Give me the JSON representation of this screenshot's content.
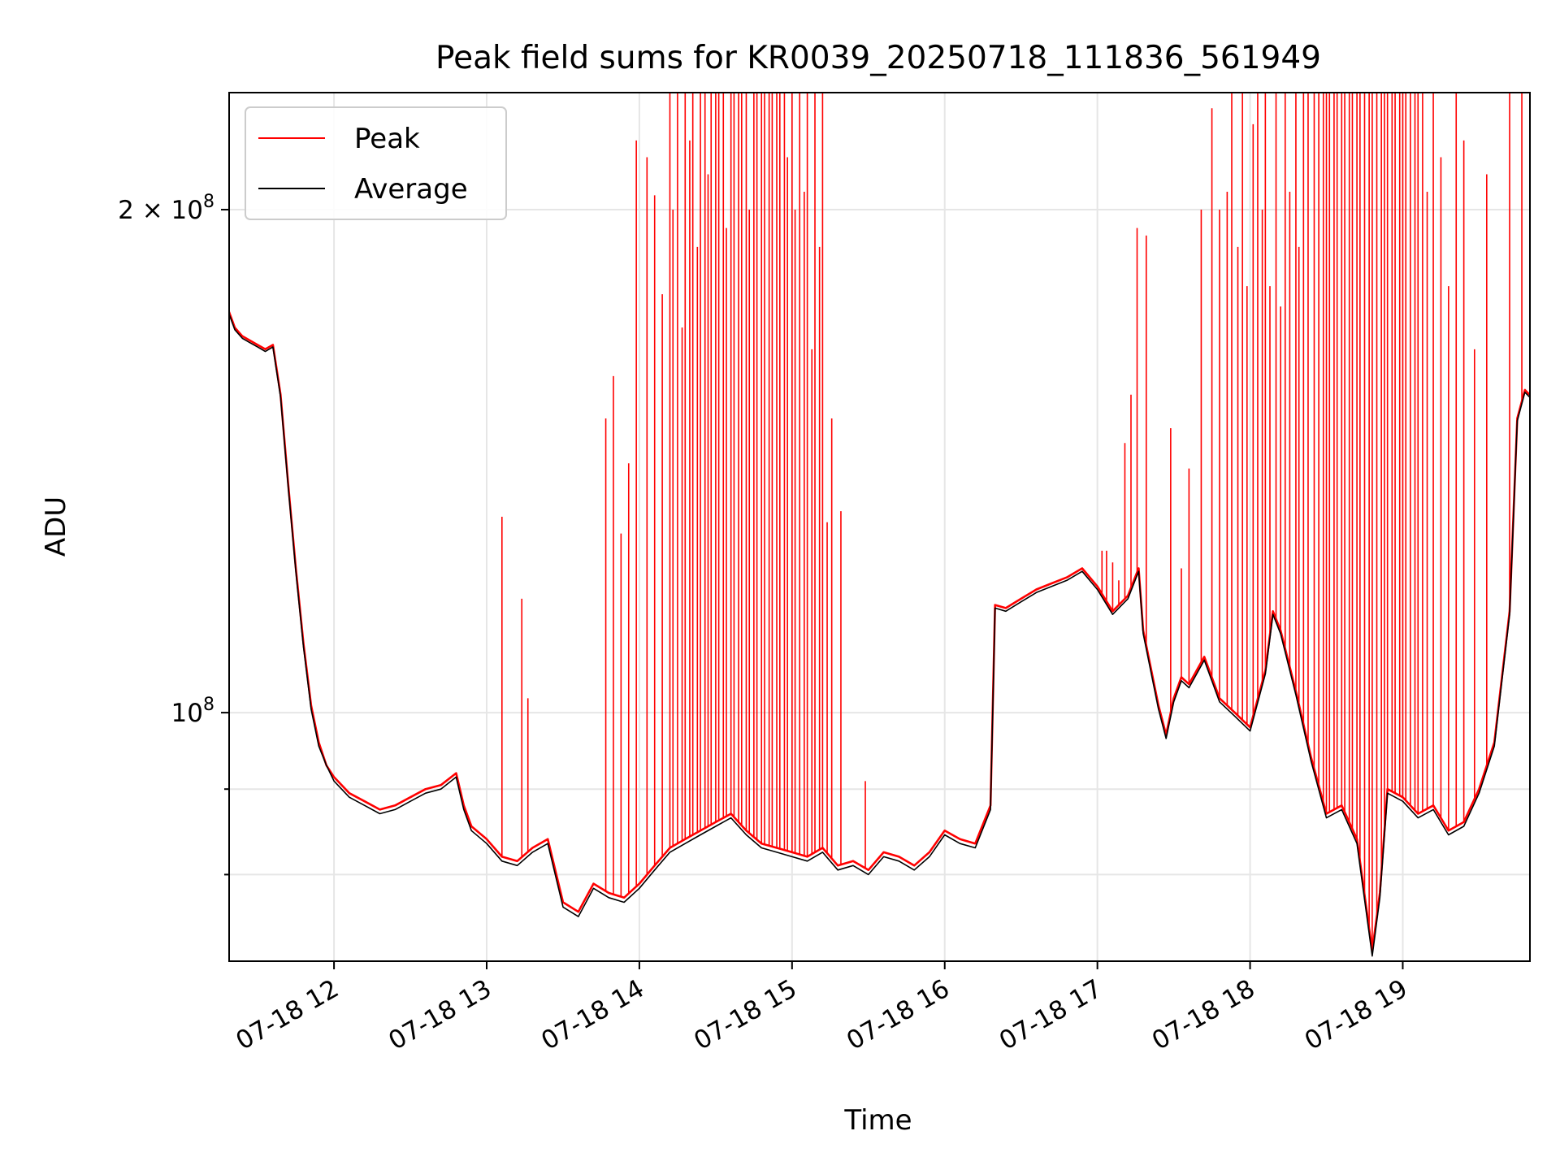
{
  "chart_data": {
    "type": "line",
    "title": "Peak field sums for KR0039_20250718_111836_561949",
    "xlabel": "Time",
    "ylabel": "ADU",
    "yscale": "log",
    "grid": true,
    "legend_position": "top-left",
    "xlim": [
      11.313,
      19.833
    ],
    "ylim": [
      71000000,
      235000000
    ],
    "x_ticks": [
      {
        "value": 12,
        "label": "07-18 12"
      },
      {
        "value": 13,
        "label": "07-18 13"
      },
      {
        "value": 14,
        "label": "07-18 14"
      },
      {
        "value": 15,
        "label": "07-18 15"
      },
      {
        "value": 16,
        "label": "07-18 16"
      },
      {
        "value": 17,
        "label": "07-18 17"
      },
      {
        "value": 18,
        "label": "07-18 18"
      },
      {
        "value": 19,
        "label": "07-18 19"
      }
    ],
    "y_ticks_major": [
      {
        "value": 100000000,
        "base": "10",
        "exp": "8",
        "prefix": ""
      },
      {
        "value": 200000000,
        "base": "10",
        "exp": "8",
        "prefix": "2 × "
      }
    ],
    "y_ticks_minor": [
      80000000,
      90000000
    ],
    "series": [
      {
        "name": "Peak",
        "color": "#ff0000",
        "x": [
          11.31,
          11.35,
          11.4,
          11.45,
          11.5,
          11.55,
          11.6,
          11.65,
          11.7,
          11.75,
          11.8,
          11.85,
          11.9,
          11.95,
          12.0,
          12.1,
          12.2,
          12.3,
          12.4,
          12.5,
          12.6,
          12.7,
          12.8,
          12.85,
          12.9,
          13.0,
          13.1,
          13.2,
          13.3,
          13.4,
          13.5,
          13.6,
          13.7,
          13.8,
          13.9,
          14.0,
          14.1,
          14.2,
          14.3,
          14.4,
          14.5,
          14.6,
          14.7,
          14.8,
          14.9,
          15.0,
          15.1,
          15.2,
          15.3,
          15.4,
          15.5,
          15.6,
          15.7,
          15.8,
          15.9,
          16.0,
          16.1,
          16.2,
          16.3,
          16.33,
          16.4,
          16.5,
          16.6,
          16.7,
          16.8,
          16.9,
          17.0,
          17.1,
          17.2,
          17.27,
          17.3,
          17.4,
          17.45,
          17.5,
          17.55,
          17.6,
          17.7,
          17.8,
          17.9,
          18.0,
          18.1,
          18.15,
          18.2,
          18.3,
          18.4,
          18.5,
          18.6,
          18.7,
          18.8,
          18.85,
          18.9,
          19.0,
          19.1,
          19.2,
          19.3,
          19.4,
          19.5,
          19.6,
          19.7,
          19.75,
          19.8,
          19.83
        ],
        "y": [
          174000000,
          170000000,
          168000000,
          167000000,
          166000000,
          165000000,
          166000000,
          155000000,
          137000000,
          122000000,
          110000000,
          101000000,
          96000000,
          93000000,
          91500000,
          89500000,
          88500000,
          87500000,
          88000000,
          89000000,
          90000000,
          90500000,
          92000000,
          88000000,
          85500000,
          84000000,
          82000000,
          81500000,
          83000000,
          84000000,
          77000000,
          76000000,
          79000000,
          78000000,
          77500000,
          79000000,
          81000000,
          83000000,
          84000000,
          85000000,
          86000000,
          87000000,
          85000000,
          83500000,
          83000000,
          82500000,
          82000000,
          83000000,
          81000000,
          81500000,
          80500000,
          82500000,
          82000000,
          81000000,
          82500000,
          85000000,
          84000000,
          83500000,
          88000000,
          116000000,
          115500000,
          117000000,
          118500000,
          119500000,
          120500000,
          122000000,
          119000000,
          115000000,
          117500000,
          122000000,
          112000000,
          101000000,
          97000000,
          102000000,
          105000000,
          104000000,
          108000000,
          102000000,
          100000000,
          98000000,
          106000000,
          115000000,
          112000000,
          103000000,
          94000000,
          87000000,
          88000000,
          84000000,
          72000000,
          78000000,
          90000000,
          89000000,
          87000000,
          88000000,
          85000000,
          86000000,
          90000000,
          96000000,
          115000000,
          150000000,
          156000000,
          155000000
        ]
      },
      {
        "name": "Average",
        "color": "#000000",
        "x": [
          11.31,
          11.35,
          11.4,
          11.45,
          11.5,
          11.55,
          11.6,
          11.65,
          11.7,
          11.75,
          11.8,
          11.85,
          11.9,
          11.95,
          12.0,
          12.1,
          12.2,
          12.3,
          12.4,
          12.5,
          12.6,
          12.7,
          12.8,
          12.85,
          12.9,
          13.0,
          13.1,
          13.2,
          13.3,
          13.4,
          13.5,
          13.6,
          13.7,
          13.8,
          13.9,
          14.0,
          14.1,
          14.2,
          14.3,
          14.4,
          14.5,
          14.6,
          14.7,
          14.8,
          14.9,
          15.0,
          15.1,
          15.2,
          15.3,
          15.4,
          15.5,
          15.6,
          15.7,
          15.8,
          15.9,
          16.0,
          16.1,
          16.2,
          16.3,
          16.33,
          16.4,
          16.5,
          16.6,
          16.7,
          16.8,
          16.9,
          17.0,
          17.1,
          17.2,
          17.27,
          17.3,
          17.4,
          17.45,
          17.5,
          17.55,
          17.6,
          17.7,
          17.8,
          17.9,
          18.0,
          18.1,
          18.15,
          18.2,
          18.3,
          18.4,
          18.5,
          18.6,
          18.7,
          18.8,
          18.85,
          18.9,
          19.0,
          19.1,
          19.2,
          19.3,
          19.4,
          19.5,
          19.6,
          19.7,
          19.75,
          19.8,
          19.83
        ],
        "y": [
          173500000,
          169500000,
          167500000,
          166500000,
          165500000,
          164500000,
          165500000,
          154500000,
          136500000,
          121500000,
          109500000,
          100500000,
          95500000,
          93000000,
          91000000,
          89000000,
          88000000,
          87000000,
          87500000,
          88500000,
          89500000,
          90000000,
          91500000,
          87500000,
          85000000,
          83500000,
          81500000,
          81000000,
          82500000,
          83500000,
          76500000,
          75500000,
          78500000,
          77500000,
          77000000,
          78500000,
          80500000,
          82500000,
          83500000,
          84500000,
          85500000,
          86500000,
          84500000,
          83000000,
          82500000,
          82000000,
          81500000,
          82500000,
          80500000,
          81000000,
          80000000,
          82000000,
          81500000,
          80500000,
          82000000,
          84500000,
          83500000,
          83000000,
          87500000,
          115500000,
          115000000,
          116500000,
          118000000,
          119000000,
          120000000,
          121500000,
          118500000,
          114500000,
          117000000,
          121500000,
          111500000,
          100500000,
          96500000,
          101500000,
          104500000,
          103500000,
          107500000,
          101500000,
          99500000,
          97500000,
          105500000,
          114500000,
          111500000,
          102500000,
          93500000,
          86500000,
          87500000,
          83500000,
          71500000,
          77500000,
          89500000,
          88500000,
          86500000,
          87500000,
          84500000,
          85500000,
          89500000,
          95500000,
          114500000,
          149500000,
          155500000,
          154500000
        ]
      }
    ],
    "peak_spikes": {
      "x": [
        13.1,
        13.23,
        13.27,
        13.78,
        13.83,
        13.88,
        13.93,
        13.98,
        14.05,
        14.1,
        14.15,
        14.2,
        14.22,
        14.25,
        14.28,
        14.3,
        14.33,
        14.35,
        14.38,
        14.4,
        14.43,
        14.45,
        14.47,
        14.5,
        14.52,
        14.55,
        14.57,
        14.6,
        14.62,
        14.65,
        14.67,
        14.7,
        14.72,
        14.75,
        14.77,
        14.8,
        14.82,
        14.85,
        14.87,
        14.9,
        14.92,
        14.95,
        14.97,
        15.0,
        15.02,
        15.05,
        15.08,
        15.1,
        15.13,
        15.15,
        15.18,
        15.2,
        15.23,
        15.26,
        15.32,
        15.48,
        17.03,
        17.06,
        17.1,
        17.14,
        17.18,
        17.22,
        17.26,
        17.32,
        17.48,
        17.55,
        17.6,
        17.68,
        17.75,
        17.8,
        17.85,
        17.88,
        17.92,
        17.95,
        17.98,
        18.02,
        18.05,
        18.08,
        18.1,
        18.13,
        18.17,
        18.2,
        18.23,
        18.26,
        18.3,
        18.32,
        18.35,
        18.38,
        18.42,
        18.45,
        18.48,
        18.5,
        18.52,
        18.55,
        18.57,
        18.6,
        18.62,
        18.65,
        18.67,
        18.7,
        18.72,
        18.75,
        18.78,
        18.8,
        18.83,
        18.86,
        18.88,
        18.9,
        18.93,
        18.95,
        18.98,
        19.0,
        19.02,
        19.05,
        19.08,
        19.1,
        19.13,
        19.16,
        19.2,
        19.25,
        19.3,
        19.35,
        19.4,
        19.47,
        19.55,
        19.7,
        19.78
      ],
      "y": [
        131000000,
        117000000,
        102000000,
        150000000,
        159000000,
        128000000,
        141000000,
        220000000,
        215000000,
        204000000,
        178000000,
        235000000,
        200000000,
        235000000,
        170000000,
        235000000,
        220000000,
        235000000,
        190000000,
        235000000,
        235000000,
        210000000,
        235000000,
        235000000,
        235000000,
        235000000,
        195000000,
        235000000,
        235000000,
        235000000,
        235000000,
        235000000,
        200000000,
        235000000,
        235000000,
        235000000,
        235000000,
        235000000,
        235000000,
        235000000,
        235000000,
        235000000,
        215000000,
        235000000,
        200000000,
        235000000,
        205000000,
        235000000,
        165000000,
        235000000,
        190000000,
        235000000,
        130000000,
        150000000,
        132000000,
        91000000,
        125000000,
        125000000,
        123000000,
        120000000,
        145000000,
        155000000,
        195000000,
        193000000,
        148000000,
        122000000,
        140000000,
        200000000,
        230000000,
        200000000,
        205000000,
        235000000,
        190000000,
        235000000,
        180000000,
        225000000,
        235000000,
        200000000,
        235000000,
        180000000,
        235000000,
        175000000,
        235000000,
        205000000,
        235000000,
        190000000,
        235000000,
        235000000,
        235000000,
        235000000,
        235000000,
        235000000,
        235000000,
        235000000,
        235000000,
        235000000,
        235000000,
        235000000,
        235000000,
        235000000,
        235000000,
        235000000,
        235000000,
        235000000,
        235000000,
        235000000,
        235000000,
        235000000,
        235000000,
        235000000,
        235000000,
        235000000,
        235000000,
        235000000,
        235000000,
        235000000,
        235000000,
        205000000,
        235000000,
        215000000,
        180000000,
        235000000,
        220000000,
        165000000,
        210000000,
        235000000,
        235000000
      ]
    }
  }
}
